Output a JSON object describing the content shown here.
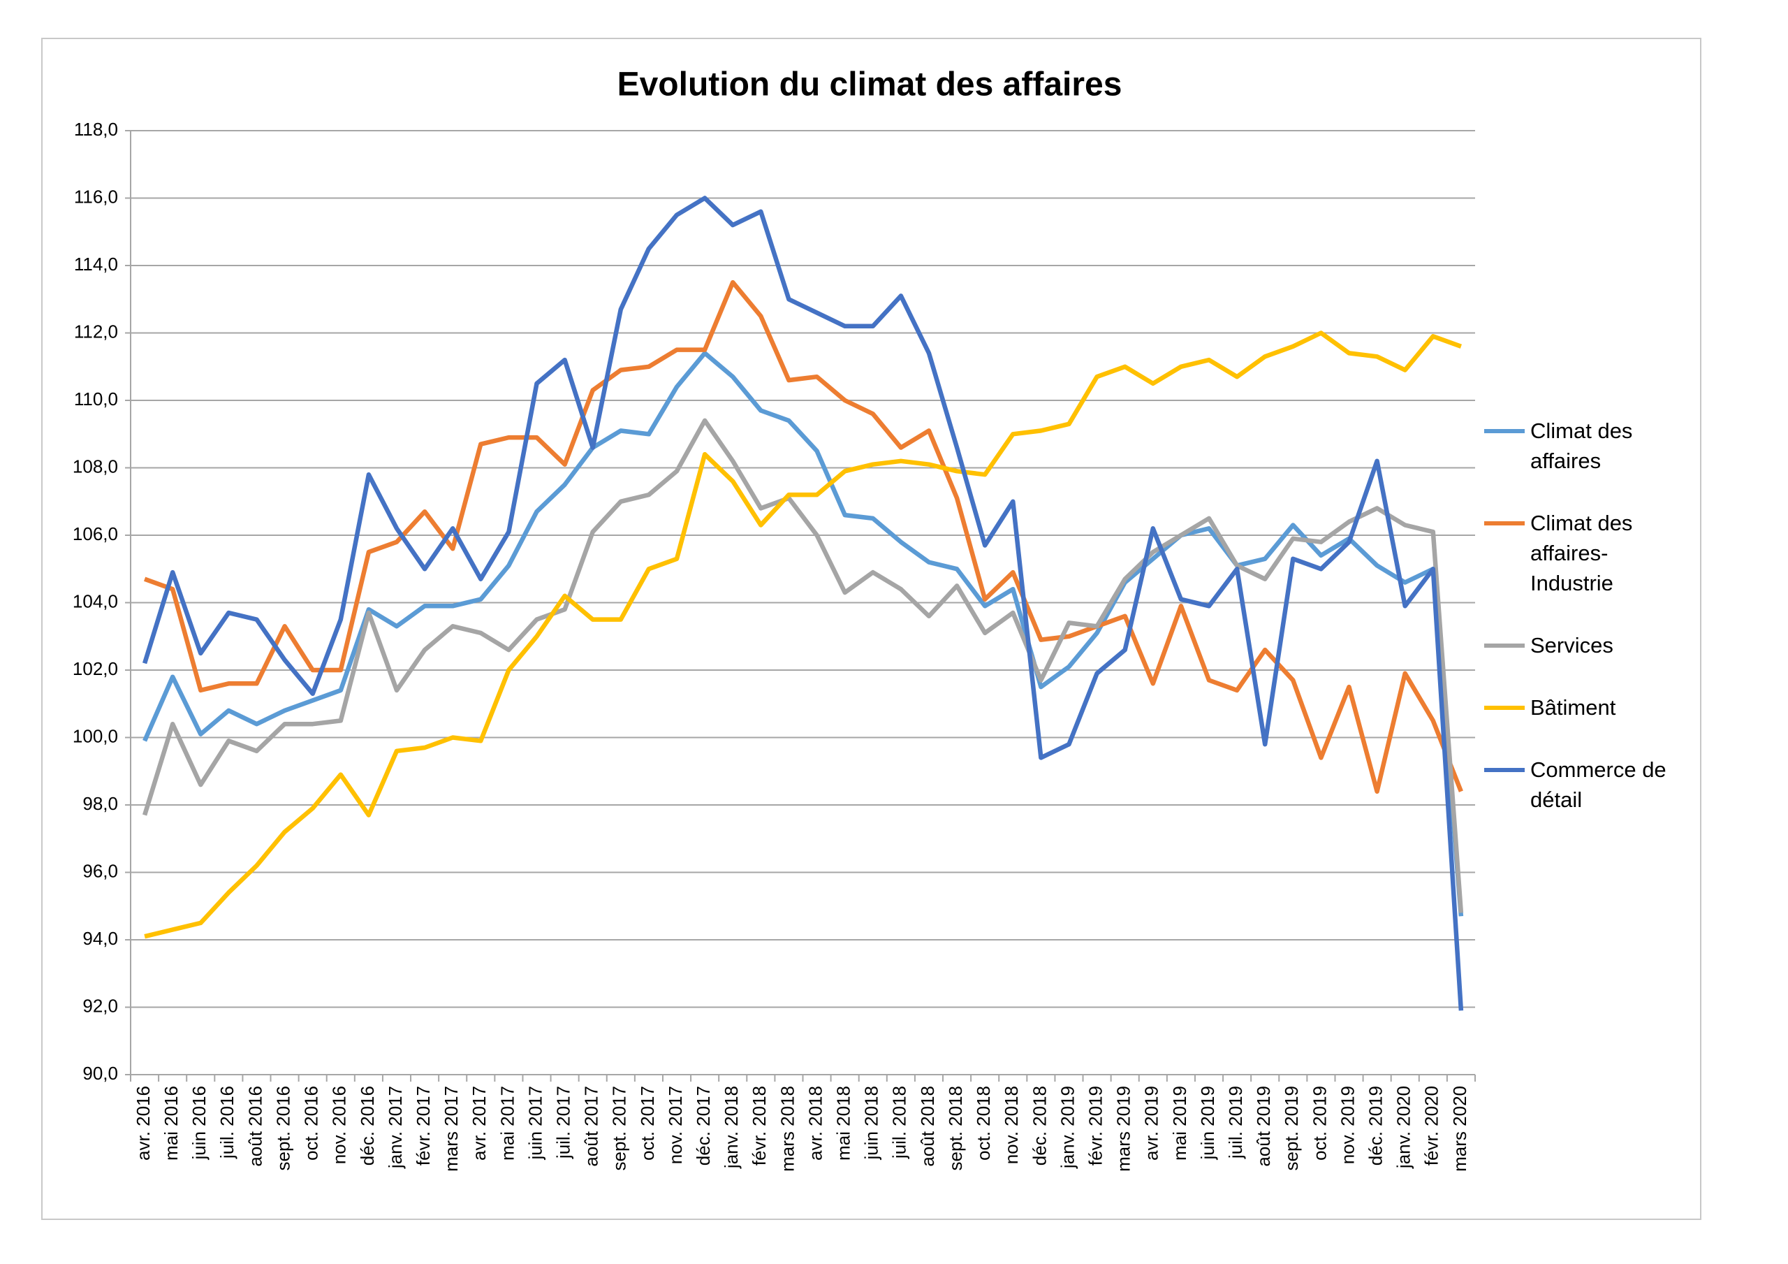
{
  "chart_data": {
    "type": "line",
    "title": "Evolution du climat des affaires",
    "categories": [
      "avr. 2016",
      "mai 2016",
      "juin 2016",
      "juil. 2016",
      "août 2016",
      "sept. 2016",
      "oct. 2016",
      "nov. 2016",
      "déc. 2016",
      "janv. 2017",
      "févr. 2017",
      "mars 2017",
      "avr. 2017",
      "mai 2017",
      "juin 2017",
      "juil. 2017",
      "août 2017",
      "sept. 2017",
      "oct. 2017",
      "nov. 2017",
      "déc. 2017",
      "janv. 2018",
      "févr. 2018",
      "mars 2018",
      "avr. 2018",
      "mai 2018",
      "juin 2018",
      "juil. 2018",
      "août 2018",
      "sept. 2018",
      "oct. 2018",
      "nov. 2018",
      "déc. 2018",
      "janv. 2019",
      "févr. 2019",
      "mars 2019",
      "avr. 2019",
      "mai 2019",
      "juin 2019",
      "juil. 2019",
      "août 2019",
      "sept. 2019",
      "oct. 2019",
      "nov. 2019",
      "déc. 2019",
      "janv. 2020",
      "févr. 2020",
      "mars 2020"
    ],
    "series": [
      {
        "name": "Climat des affaires",
        "color": "#5b9bd5",
        "values": [
          99.9,
          101.8,
          100.1,
          100.8,
          100.4,
          100.8,
          101.1,
          101.4,
          103.8,
          103.3,
          103.9,
          103.9,
          104.1,
          105.1,
          106.7,
          107.5,
          108.6,
          109.1,
          109.0,
          110.4,
          111.4,
          110.7,
          109.7,
          109.4,
          108.5,
          106.6,
          106.5,
          105.8,
          105.2,
          105.0,
          103.9,
          104.4,
          101.5,
          102.1,
          103.1,
          104.6,
          105.3,
          106.0,
          106.2,
          105.1,
          105.3,
          106.3,
          105.4,
          105.9,
          105.1,
          104.6,
          105.0,
          94.7
        ]
      },
      {
        "name": "Climat des affaires-Industrie",
        "color": "#ed7d31",
        "values": [
          104.7,
          104.4,
          101.4,
          101.6,
          101.6,
          103.3,
          102.0,
          102.0,
          105.5,
          105.8,
          106.7,
          105.6,
          108.7,
          108.9,
          108.9,
          108.1,
          110.3,
          110.9,
          111.0,
          111.5,
          111.5,
          113.5,
          112.5,
          110.6,
          110.7,
          110.0,
          109.6,
          108.6,
          109.1,
          107.1,
          104.1,
          104.9,
          102.9,
          103.0,
          103.3,
          103.6,
          101.6,
          103.9,
          101.7,
          101.4,
          102.6,
          101.7,
          99.4,
          101.5,
          98.4,
          101.9,
          100.5,
          98.4
        ]
      },
      {
        "name": "Services",
        "color": "#a5a5a5",
        "values": [
          97.7,
          100.4,
          98.6,
          99.9,
          99.6,
          100.4,
          100.4,
          100.5,
          103.7,
          101.4,
          102.6,
          103.3,
          103.1,
          102.6,
          103.5,
          103.8,
          106.1,
          107.0,
          107.2,
          107.9,
          109.4,
          108.2,
          106.8,
          107.1,
          106.0,
          104.3,
          104.9,
          104.4,
          103.6,
          104.5,
          103.1,
          103.7,
          101.7,
          103.4,
          103.3,
          104.7,
          105.5,
          106.0,
          106.5,
          105.1,
          104.7,
          105.9,
          105.8,
          106.4,
          106.8,
          106.3,
          106.1,
          94.8
        ]
      },
      {
        "name": "Bâtiment",
        "color": "#ffc000",
        "values": [
          94.1,
          94.3,
          94.5,
          95.4,
          96.2,
          97.2,
          97.9,
          98.9,
          97.7,
          99.6,
          99.7,
          100.0,
          99.9,
          102.0,
          103.0,
          104.2,
          103.5,
          103.5,
          105.0,
          105.3,
          108.4,
          107.6,
          106.3,
          107.2,
          107.2,
          107.9,
          108.1,
          108.2,
          108.1,
          107.9,
          107.8,
          109.0,
          109.1,
          109.3,
          110.7,
          111.0,
          110.5,
          111.0,
          111.2,
          110.7,
          111.3,
          111.6,
          112.0,
          111.4,
          111.3,
          110.9,
          111.9,
          111.6
        ]
      },
      {
        "name": "Commerce de détail",
        "color": "#4472c4",
        "values": [
          102.2,
          104.9,
          102.5,
          103.7,
          103.5,
          102.3,
          101.3,
          103.5,
          107.8,
          106.2,
          105.0,
          106.2,
          104.7,
          106.1,
          110.5,
          111.2,
          108.6,
          112.7,
          114.5,
          115.5,
          116.0,
          115.2,
          115.6,
          113.0,
          112.6,
          112.2,
          112.2,
          113.1,
          111.4,
          108.6,
          105.7,
          107.0,
          99.4,
          99.8,
          101.9,
          102.6,
          106.2,
          104.1,
          103.9,
          105.0,
          99.8,
          105.3,
          105.0,
          105.8,
          108.2,
          103.9,
          105.0,
          91.9
        ]
      }
    ],
    "ylim": [
      90,
      118
    ],
    "yticks": [
      {
        "value": 90,
        "label": "90,0"
      },
      {
        "value": 92,
        "label": "92,0"
      },
      {
        "value": 94,
        "label": "94,0"
      },
      {
        "value": 96,
        "label": "96,0"
      },
      {
        "value": 98,
        "label": "98,0"
      },
      {
        "value": 100,
        "label": "100,0"
      },
      {
        "value": 102,
        "label": "102,0"
      },
      {
        "value": 104,
        "label": "104,0"
      },
      {
        "value": 106,
        "label": "106,0"
      },
      {
        "value": 108,
        "label": "108,0"
      },
      {
        "value": 110,
        "label": "110,0"
      },
      {
        "value": 112,
        "label": "112,0"
      },
      {
        "value": 114,
        "label": "114,0"
      },
      {
        "value": 116,
        "label": "116,0"
      },
      {
        "value": 118,
        "label": "118,0"
      }
    ],
    "grid": true,
    "legend": "right"
  }
}
